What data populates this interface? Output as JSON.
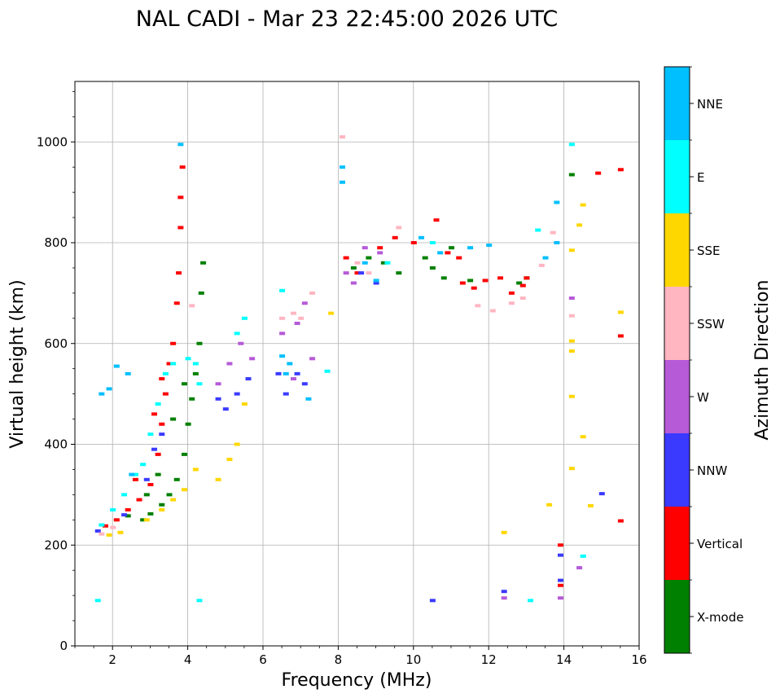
{
  "chart_data": {
    "type": "scatter",
    "title": "NAL CADI - Mar 23 22:45:00 2026 UTC",
    "xlabel": "Frequency (MHz)",
    "ylabel": "Virtual height (km)",
    "xlim": [
      1.0,
      16.0
    ],
    "ylim": [
      0,
      1120
    ],
    "xticks": [
      2,
      4,
      6,
      8,
      10,
      12,
      14,
      16
    ],
    "yticks": [
      0,
      200,
      400,
      600,
      800,
      1000
    ],
    "grid": true,
    "colorbar": {
      "label": "Azimuth Direction",
      "categories": [
        {
          "name": "X-mode",
          "color": "#008000"
        },
        {
          "name": "Vertical",
          "color": "#ff0000"
        },
        {
          "name": "NNW",
          "color": "#3a3aff"
        },
        {
          "name": "W",
          "color": "#b65ad8"
        },
        {
          "name": "SSW",
          "color": "#ffb6c1"
        },
        {
          "name": "SSE",
          "color": "#ffd700"
        },
        {
          "name": "E",
          "color": "#00ffff"
        },
        {
          "name": "NNE",
          "color": "#00bfff"
        }
      ]
    },
    "series": [
      {
        "name": "X-mode",
        "points": [
          [
            2.4,
            258
          ],
          [
            2.8,
            250
          ],
          [
            3.0,
            262
          ],
          [
            3.3,
            280
          ],
          [
            3.5,
            300
          ],
          [
            3.7,
            330
          ],
          [
            3.9,
            380
          ],
          [
            4.0,
            440
          ],
          [
            4.1,
            490
          ],
          [
            4.2,
            540
          ],
          [
            4.3,
            600
          ],
          [
            4.35,
            700
          ],
          [
            4.4,
            760
          ],
          [
            8.4,
            750
          ],
          [
            8.8,
            770
          ],
          [
            9.2,
            760
          ],
          [
            9.6,
            740
          ],
          [
            10.3,
            770
          ],
          [
            10.5,
            750
          ],
          [
            10.8,
            730
          ],
          [
            11.0,
            790
          ],
          [
            11.5,
            725
          ],
          [
            12.8,
            720
          ],
          [
            13.0,
            730
          ],
          [
            14.2,
            935
          ],
          [
            2.9,
            300
          ],
          [
            3.2,
            340
          ],
          [
            3.6,
            450
          ],
          [
            3.9,
            520
          ]
        ]
      },
      {
        "name": "Vertical",
        "points": [
          [
            1.8,
            238
          ],
          [
            2.1,
            250
          ],
          [
            2.4,
            270
          ],
          [
            2.7,
            290
          ],
          [
            3.0,
            320
          ],
          [
            3.2,
            380
          ],
          [
            3.3,
            440
          ],
          [
            3.4,
            500
          ],
          [
            3.5,
            560
          ],
          [
            3.6,
            600
          ],
          [
            3.7,
            680
          ],
          [
            3.75,
            740
          ],
          [
            3.8,
            830
          ],
          [
            3.8,
            890
          ],
          [
            3.85,
            950
          ],
          [
            8.2,
            770
          ],
          [
            8.5,
            740
          ],
          [
            9.1,
            790
          ],
          [
            9.5,
            810
          ],
          [
            10.0,
            800
          ],
          [
            10.6,
            845
          ],
          [
            10.9,
            780
          ],
          [
            11.2,
            770
          ],
          [
            11.3,
            720
          ],
          [
            11.6,
            710
          ],
          [
            11.9,
            725
          ],
          [
            12.3,
            730
          ],
          [
            12.6,
            700
          ],
          [
            12.9,
            715
          ],
          [
            13.0,
            730
          ],
          [
            14.9,
            938
          ],
          [
            15.5,
            945
          ],
          [
            15.5,
            615
          ],
          [
            15.5,
            248
          ],
          [
            13.9,
            200
          ],
          [
            13.9,
            120
          ],
          [
            2.6,
            330
          ],
          [
            3.1,
            460
          ],
          [
            3.3,
            530
          ]
        ]
      },
      {
        "name": "NNW",
        "points": [
          [
            1.6,
            228
          ],
          [
            2.3,
            260
          ],
          [
            2.9,
            330
          ],
          [
            3.1,
            390
          ],
          [
            3.3,
            420
          ],
          [
            4.8,
            490
          ],
          [
            5.0,
            470
          ],
          [
            5.3,
            500
          ],
          [
            5.6,
            530
          ],
          [
            6.4,
            540
          ],
          [
            6.6,
            500
          ],
          [
            6.9,
            540
          ],
          [
            7.1,
            520
          ],
          [
            8.6,
            740
          ],
          [
            9.0,
            720
          ],
          [
            10.5,
            90
          ],
          [
            12.4,
            108
          ],
          [
            13.9,
            180
          ],
          [
            13.9,
            130
          ],
          [
            15.0,
            302
          ]
        ]
      },
      {
        "name": "W",
        "points": [
          [
            4.8,
            520
          ],
          [
            5.1,
            560
          ],
          [
            5.4,
            600
          ],
          [
            5.7,
            570
          ],
          [
            6.5,
            620
          ],
          [
            6.9,
            640
          ],
          [
            7.1,
            680
          ],
          [
            7.3,
            570
          ],
          [
            8.2,
            740
          ],
          [
            8.4,
            720
          ],
          [
            8.7,
            790
          ],
          [
            9.1,
            780
          ],
          [
            12.4,
            95
          ],
          [
            13.9,
            95
          ],
          [
            14.2,
            690
          ],
          [
            14.4,
            155
          ],
          [
            6.8,
            530
          ]
        ]
      },
      {
        "name": "SSW",
        "points": [
          [
            1.7,
            222
          ],
          [
            2.0,
            235
          ],
          [
            4.1,
            675
          ],
          [
            6.5,
            650
          ],
          [
            6.8,
            660
          ],
          [
            7.0,
            650
          ],
          [
            7.3,
            700
          ],
          [
            8.5,
            760
          ],
          [
            8.8,
            740
          ],
          [
            9.6,
            830
          ],
          [
            11.7,
            675
          ],
          [
            12.1,
            665
          ],
          [
            12.6,
            680
          ],
          [
            12.9,
            690
          ],
          [
            13.4,
            755
          ],
          [
            13.7,
            820
          ],
          [
            14.2,
            655
          ],
          [
            8.1,
            1010
          ]
        ]
      },
      {
        "name": "SSE",
        "points": [
          [
            1.9,
            220
          ],
          [
            2.2,
            225
          ],
          [
            2.9,
            250
          ],
          [
            3.3,
            270
          ],
          [
            3.6,
            290
          ],
          [
            3.9,
            310
          ],
          [
            4.2,
            350
          ],
          [
            4.8,
            330
          ],
          [
            5.1,
            370
          ],
          [
            5.3,
            400
          ],
          [
            5.5,
            480
          ],
          [
            7.8,
            660
          ],
          [
            13.6,
            280
          ],
          [
            14.2,
            605
          ],
          [
            14.2,
            585
          ],
          [
            14.2,
            495
          ],
          [
            14.2,
            352
          ],
          [
            14.2,
            785
          ],
          [
            14.4,
            835
          ],
          [
            14.5,
            415
          ],
          [
            14.7,
            278
          ],
          [
            14.5,
            875
          ],
          [
            15.5,
            662
          ],
          [
            12.4,
            225
          ]
        ]
      },
      {
        "name": "E",
        "points": [
          [
            1.7,
            240
          ],
          [
            2.0,
            270
          ],
          [
            2.3,
            300
          ],
          [
            2.6,
            340
          ],
          [
            2.8,
            360
          ],
          [
            3.0,
            420
          ],
          [
            3.2,
            480
          ],
          [
            3.4,
            540
          ],
          [
            3.6,
            560
          ],
          [
            4.0,
            570
          ],
          [
            4.2,
            560
          ],
          [
            4.3,
            520
          ],
          [
            5.3,
            620
          ],
          [
            5.5,
            650
          ],
          [
            6.5,
            705
          ],
          [
            7.7,
            545
          ],
          [
            9.3,
            760
          ],
          [
            10.5,
            800
          ],
          [
            13.1,
            90
          ],
          [
            13.3,
            825
          ],
          [
            14.2,
            995
          ],
          [
            14.5,
            178
          ],
          [
            1.6,
            90
          ],
          [
            4.3,
            90
          ]
        ]
      },
      {
        "name": "NNE",
        "points": [
          [
            1.7,
            500
          ],
          [
            1.9,
            510
          ],
          [
            2.1,
            555
          ],
          [
            2.4,
            540
          ],
          [
            2.5,
            340
          ],
          [
            6.5,
            575
          ],
          [
            6.7,
            560
          ],
          [
            6.6,
            540
          ],
          [
            7.2,
            490
          ],
          [
            8.1,
            950
          ],
          [
            8.1,
            920
          ],
          [
            8.7,
            760
          ],
          [
            9.0,
            725
          ],
          [
            10.2,
            810
          ],
          [
            10.7,
            780
          ],
          [
            11.5,
            790
          ],
          [
            12.0,
            795
          ],
          [
            13.5,
            770
          ],
          [
            13.8,
            800
          ],
          [
            3.8,
            995
          ],
          [
            13.8,
            880
          ]
        ]
      }
    ]
  }
}
